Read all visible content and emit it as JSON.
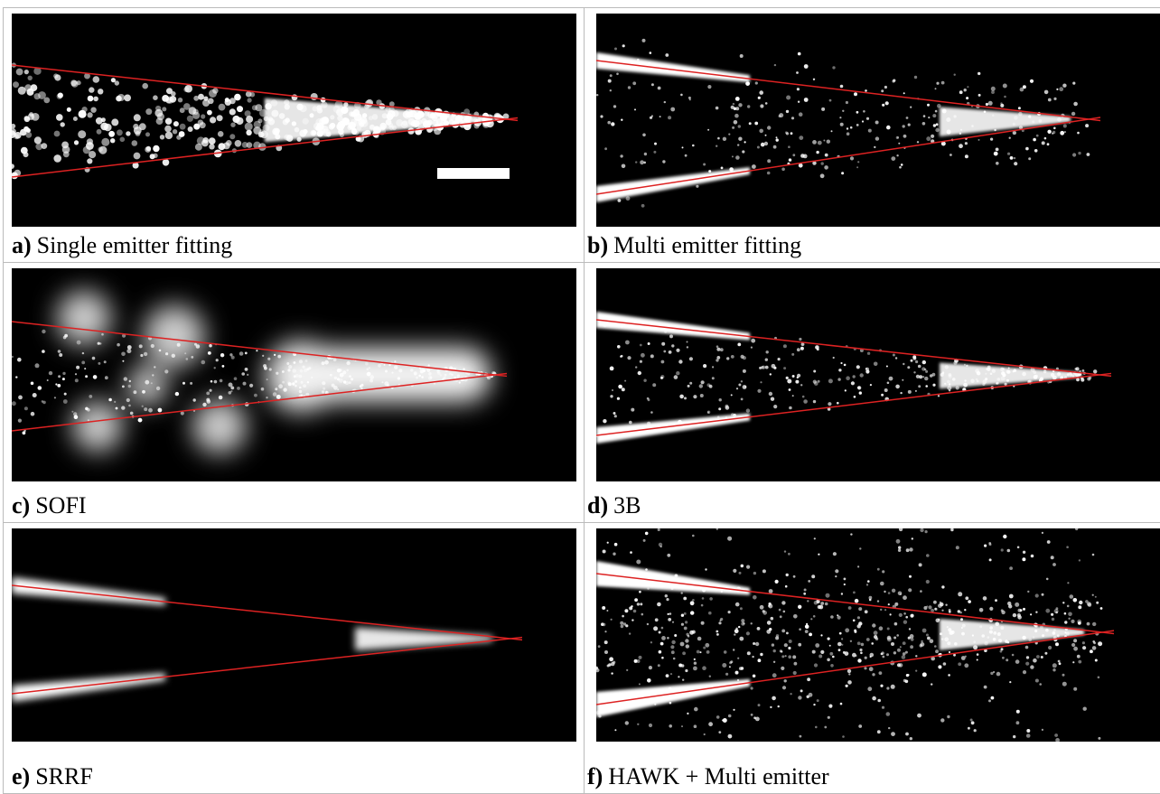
{
  "panels": [
    {
      "label": "a)",
      "caption": "Single emitter fitting"
    },
    {
      "label": "b)",
      "caption": "Multi emitter fitting"
    },
    {
      "label": "c)",
      "caption": "SOFI"
    },
    {
      "label": "d)",
      "caption": "3B"
    },
    {
      "label": "e)",
      "caption": "SRRF"
    },
    {
      "label": "f)",
      "caption": "HAWK + Multi emitter"
    }
  ]
}
